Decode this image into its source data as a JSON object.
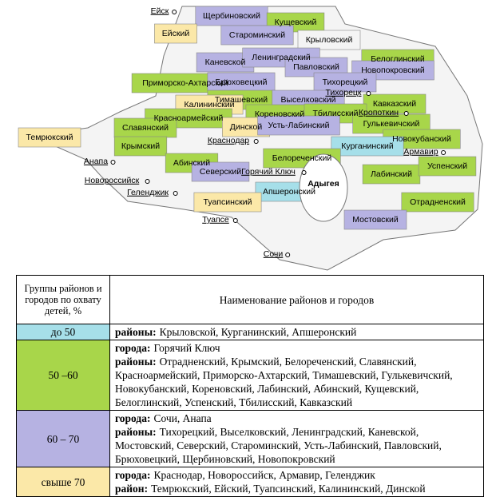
{
  "map": {
    "districts": [
      "Щербиновский",
      "Кущевский",
      "Ейский",
      "Староминский",
      "Крыловский",
      "Каневской",
      "Ленинградский",
      "Белоглинский",
      "Новопокровский",
      "Павловский",
      "Приморско-Ахтарский",
      "Брюховецкий",
      "Тихорецкий",
      "Тимашевский",
      "Выселковский",
      "Калининский",
      "Кавказский",
      "Кореновский",
      "Тбилисский",
      "Гулькевичский",
      "Красноармейский",
      "Динской",
      "Усть-Лабинский",
      "Славянский",
      "Темрюкский",
      "Новокубанский",
      "Курганинский",
      "Крымский",
      "Белореченский",
      "Абинский",
      "Северский",
      "Лабинский",
      "Успенский",
      "Апшеронский",
      "Туапсинский",
      "Отрадненский",
      "Мостовский"
    ],
    "cities": [
      "Ейск",
      "Тихорецк",
      "Кропоткин",
      "Краснодар",
      "Армавир",
      "Анапа",
      "Горячий Ключ",
      "Новороссийск",
      "Геленджик",
      "Туапсе",
      "Сочи"
    ],
    "region": "Адыгея"
  },
  "table": {
    "header": [
      "Группы районов и городов по охвату детей, %",
      "Наименование районов и городов"
    ],
    "groups": [
      {
        "range": "до 50",
        "color": "#a6dfe9",
        "lines": [
          {
            "kind": "районы:",
            "items": "Крыловской, Курганинский, Апшеронский"
          }
        ]
      },
      {
        "range": "50 –60",
        "color": "#a8d64a",
        "lines": [
          {
            "kind": "города:",
            "items": "Горячий Ключ"
          },
          {
            "kind": "районы:",
            "items": "Отрадненский, Крымский, Белореченский, Славянский, Красноармейский, Приморско-Ахтарский, Тимашевский, Гулькевичский, Новокубанский, Кореновский, Лабинский, Абинский, Кущевский, Белоглинский, Успенский, Тбилисский, Кавказский"
          }
        ]
      },
      {
        "range": "60 – 70",
        "color": "#b6b2e2",
        "lines": [
          {
            "kind": "города:",
            "items": "Сочи, Анапа"
          },
          {
            "kind": "районы:",
            "items": "Тихорецкий, Выселковский, Ленинградский, Каневской, Мостовский, Северский, Староминский, Усть-Лабинский, Павловский, Брюховецкий, Щербиновский, Новопокровский"
          }
        ]
      },
      {
        "range": "свыше 70",
        "color": "#fbe8a8",
        "lines": [
          {
            "kind": "города:",
            "items": "Краснодар, Новороссийск, Армавир, Геленджик"
          },
          {
            "kind": "район:",
            "items": "Темрюкский, Ейский, Туапсинский, Калининский, Динской"
          }
        ]
      }
    ]
  }
}
